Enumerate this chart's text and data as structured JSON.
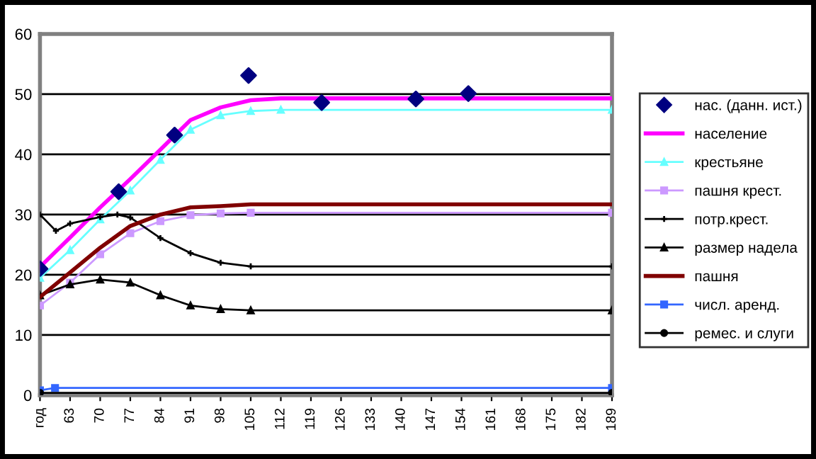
{
  "chart_data": {
    "type": "line",
    "xlim": [
      56,
      189
    ],
    "xticks": [
      {
        "value": 56,
        "label": "год"
      },
      63,
      70,
      77,
      84,
      91,
      98,
      105,
      112,
      119,
      126,
      133,
      140,
      147,
      154,
      161,
      168,
      175,
      182,
      189
    ],
    "ylim": [
      0,
      60
    ],
    "yticks": [
      0,
      10,
      20,
      30,
      40,
      50,
      60
    ],
    "grid": "y",
    "legend": "right",
    "series": [
      {
        "name": "нас. (данн. ист.)",
        "type": "scatter",
        "marker": "diamond",
        "color": "#000080",
        "x": [
          56,
          74.3,
          87.3,
          104.5,
          121.5,
          143.4,
          155.6
        ],
        "values": [
          21,
          33.8,
          43.2,
          53.1,
          48.6,
          49.2,
          50.1
        ]
      },
      {
        "name": "население",
        "color": "#ff00ff",
        "marker": "none",
        "x": [
          56,
          63,
          70,
          77,
          84,
          91,
          98,
          105,
          112,
          189
        ],
        "values": [
          21.3,
          26.2,
          31.2,
          35.9,
          40.8,
          45.7,
          47.8,
          49,
          49.3,
          49.3
        ]
      },
      {
        "name": "крестьяне",
        "color": "#66ffff",
        "marker": "triangle",
        "x": [
          56,
          63,
          70,
          77,
          84,
          91,
          98,
          105,
          112,
          189
        ],
        "values": [
          19.5,
          24.1,
          29.2,
          34,
          39.1,
          44.1,
          46.5,
          47.2,
          47.4,
          47.4
        ]
      },
      {
        "name": "пашня крест.",
        "color": "#cc99ff",
        "marker": "square",
        "x": [
          56,
          63,
          70,
          77,
          84,
          91,
          98,
          105,
          189
        ],
        "values": [
          14.9,
          18.7,
          23.4,
          26.9,
          28.9,
          29.9,
          30.2,
          30.3,
          30.3
        ]
      },
      {
        "name": "потр.крест.",
        "color": "#000000",
        "marker": "cross",
        "x": [
          56,
          59.7,
          63,
          70,
          74,
          77,
          84,
          91,
          98,
          105,
          189
        ],
        "values": [
          30,
          27.3,
          28.5,
          29.6,
          30,
          29.5,
          26.1,
          23.6,
          22,
          21.4,
          21.4
        ]
      },
      {
        "name": "размер надела",
        "color": "#000000",
        "marker": "triangle",
        "x": [
          56,
          63,
          70,
          77,
          84,
          91,
          98,
          105,
          189
        ],
        "values": [
          16.6,
          18.4,
          19.2,
          18.7,
          16.6,
          14.9,
          14.3,
          14.1,
          14.1
        ]
      },
      {
        "name": "пашня",
        "color": "#800000",
        "marker": "none",
        "x": [
          56,
          63,
          70,
          77,
          84,
          91,
          98,
          105,
          189
        ],
        "values": [
          16.3,
          20.4,
          24.5,
          28.1,
          30,
          31.2,
          31.4,
          31.7,
          31.7
        ]
      },
      {
        "name": "числ. аренд.",
        "color": "#3366ff",
        "marker": "square",
        "x": [
          56,
          59.5,
          189
        ],
        "values": [
          0.8,
          1.2,
          1.2
        ]
      },
      {
        "name": "ремес. и слуги",
        "color": "#000000",
        "marker": "circle",
        "x": [
          56,
          189
        ],
        "values": [
          0.4,
          0.4
        ]
      }
    ]
  }
}
